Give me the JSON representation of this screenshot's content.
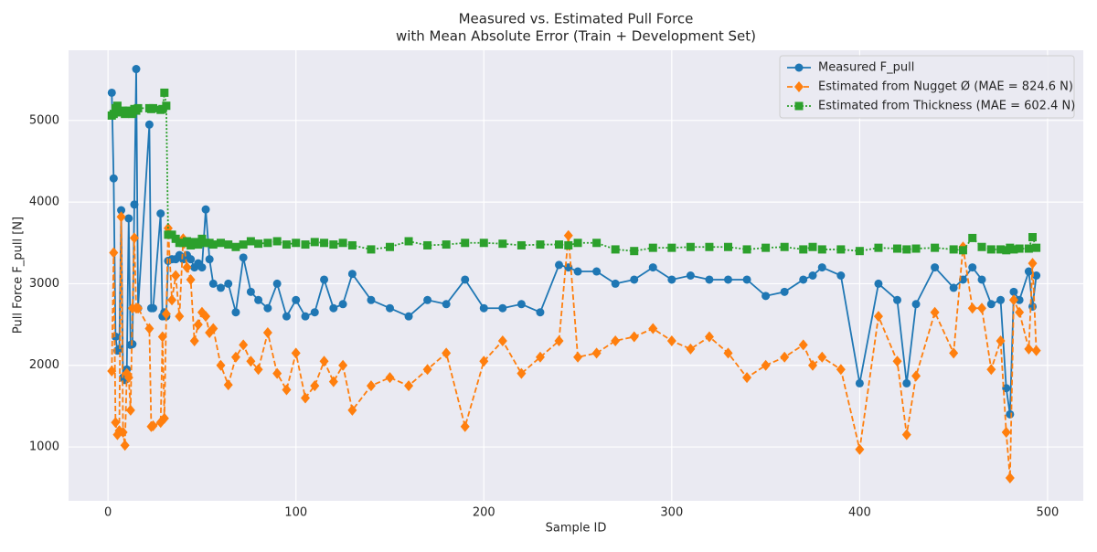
{
  "chart_data": {
    "type": "line",
    "title": "Measured vs. Estimated Pull Force",
    "subtitle": "with Mean Absolute Error (Train + Development Set)",
    "x_label": "Sample ID",
    "y_label": "Pull Force F_pull [N]",
    "xlim": [
      -21,
      519
    ],
    "ylim": [
      340,
      5860
    ],
    "xticks": [
      0,
      100,
      200,
      300,
      400,
      500
    ],
    "yticks": [
      1000,
      2000,
      3000,
      4000,
      5000
    ],
    "grid": true,
    "legend": "upper right",
    "x": [
      2,
      3,
      4,
      5,
      6,
      7,
      8,
      9,
      10,
      11,
      12,
      13,
      14,
      15,
      16,
      22,
      23,
      24,
      28,
      29,
      30,
      31,
      32,
      34,
      36,
      38,
      40,
      42,
      44,
      46,
      48,
      50,
      52,
      54,
      56,
      60,
      64,
      68,
      72,
      76,
      80,
      85,
      90,
      95,
      100,
      105,
      110,
      115,
      120,
      125,
      130,
      140,
      150,
      160,
      170,
      180,
      190,
      200,
      210,
      220,
      230,
      240,
      245,
      250,
      260,
      270,
      280,
      290,
      300,
      310,
      320,
      330,
      340,
      350,
      360,
      370,
      375,
      380,
      390,
      400,
      410,
      420,
      425,
      430,
      440,
      450,
      455,
      460,
      465,
      470,
      475,
      478,
      480,
      482,
      485,
      490,
      492,
      494
    ],
    "series": [
      {
        "name": "Measured F_pull",
        "color": "#1f77b4",
        "marker": "circle",
        "linestyle": "solid",
        "values": [
          5340,
          4290,
          2350,
          2180,
          2200,
          3900,
          1850,
          1820,
          1950,
          3800,
          2250,
          2260,
          3970,
          5630,
          2700,
          4950,
          2700,
          2700,
          3860,
          2600,
          2650,
          2600,
          3280,
          3300,
          3300,
          3350,
          3300,
          3350,
          3300,
          3200,
          3250,
          3200,
          3910,
          3300,
          3000,
          2950,
          3000,
          2650,
          3320,
          2900,
          2800,
          2700,
          3000,
          2600,
          2800,
          2600,
          2650,
          3050,
          2700,
          2750,
          3120,
          2800,
          2700,
          2600,
          2800,
          2750,
          3050,
          2700,
          2700,
          2750,
          2650,
          3230,
          3200,
          3150,
          3150,
          3000,
          3050,
          3200,
          3050,
          3100,
          3050,
          3050,
          3050,
          2850,
          2900,
          3050,
          3100,
          3200,
          3100,
          1780,
          3000,
          2800,
          1780,
          2750,
          3200,
          2950,
          3050,
          3200,
          3050,
          2750,
          2800,
          1720,
          1400,
          2900,
          2800,
          3150,
          2720,
          3100
        ]
      },
      {
        "name": "Estimated from Nugget Ø (MAE = 824.6 N)",
        "color": "#ff7f0e",
        "marker": "diamond",
        "linestyle": "dashed",
        "values": [
          1930,
          3380,
          1300,
          1150,
          1200,
          3820,
          1180,
          1020,
          1900,
          1850,
          1450,
          2700,
          3560,
          2700,
          2700,
          2450,
          1250,
          1260,
          1300,
          2350,
          1350,
          2630,
          3680,
          2800,
          3100,
          2600,
          3550,
          3200,
          3050,
          2300,
          2500,
          2650,
          2600,
          2400,
          2450,
          2000,
          1760,
          2100,
          2250,
          2050,
          1950,
          2400,
          1900,
          1700,
          2150,
          1600,
          1750,
          2050,
          1800,
          2000,
          1450,
          1750,
          1850,
          1750,
          1950,
          2150,
          1250,
          2050,
          2300,
          1900,
          2100,
          2300,
          3590,
          2100,
          2150,
          2300,
          2350,
          2450,
          2300,
          2200,
          2350,
          2150,
          1850,
          2000,
          2100,
          2250,
          2000,
          2100,
          1950,
          970,
          2600,
          2050,
          1150,
          1870,
          2650,
          2150,
          3450,
          2700,
          2700,
          1950,
          2300,
          1180,
          620,
          2800,
          2650,
          2200,
          3250,
          2180
        ]
      },
      {
        "name": "Estimated from Thickness (MAE = 602.4 N)",
        "color": "#2ca02c",
        "marker": "square",
        "linestyle": "dotted",
        "values": [
          5060,
          5080,
          5150,
          5180,
          5100,
          5100,
          5120,
          5080,
          5100,
          5120,
          5100,
          5080,
          5140,
          5120,
          5150,
          5150,
          5140,
          5150,
          5130,
          5140,
          5340,
          5180,
          3600,
          3600,
          3550,
          3500,
          3500,
          3520,
          3470,
          3510,
          3480,
          3550,
          3500,
          3500,
          3480,
          3500,
          3480,
          3450,
          3480,
          3520,
          3490,
          3500,
          3520,
          3480,
          3500,
          3480,
          3510,
          3500,
          3480,
          3500,
          3470,
          3420,
          3450,
          3520,
          3470,
          3480,
          3500,
          3500,
          3490,
          3470,
          3480,
          3480,
          3470,
          3500,
          3500,
          3420,
          3400,
          3440,
          3440,
          3450,
          3450,
          3450,
          3420,
          3440,
          3450,
          3420,
          3450,
          3420,
          3420,
          3400,
          3440,
          3430,
          3420,
          3430,
          3440,
          3420,
          3410,
          3560,
          3450,
          3420,
          3420,
          3410,
          3440,
          3420,
          3430,
          3430,
          3570,
          3440
        ]
      }
    ]
  }
}
